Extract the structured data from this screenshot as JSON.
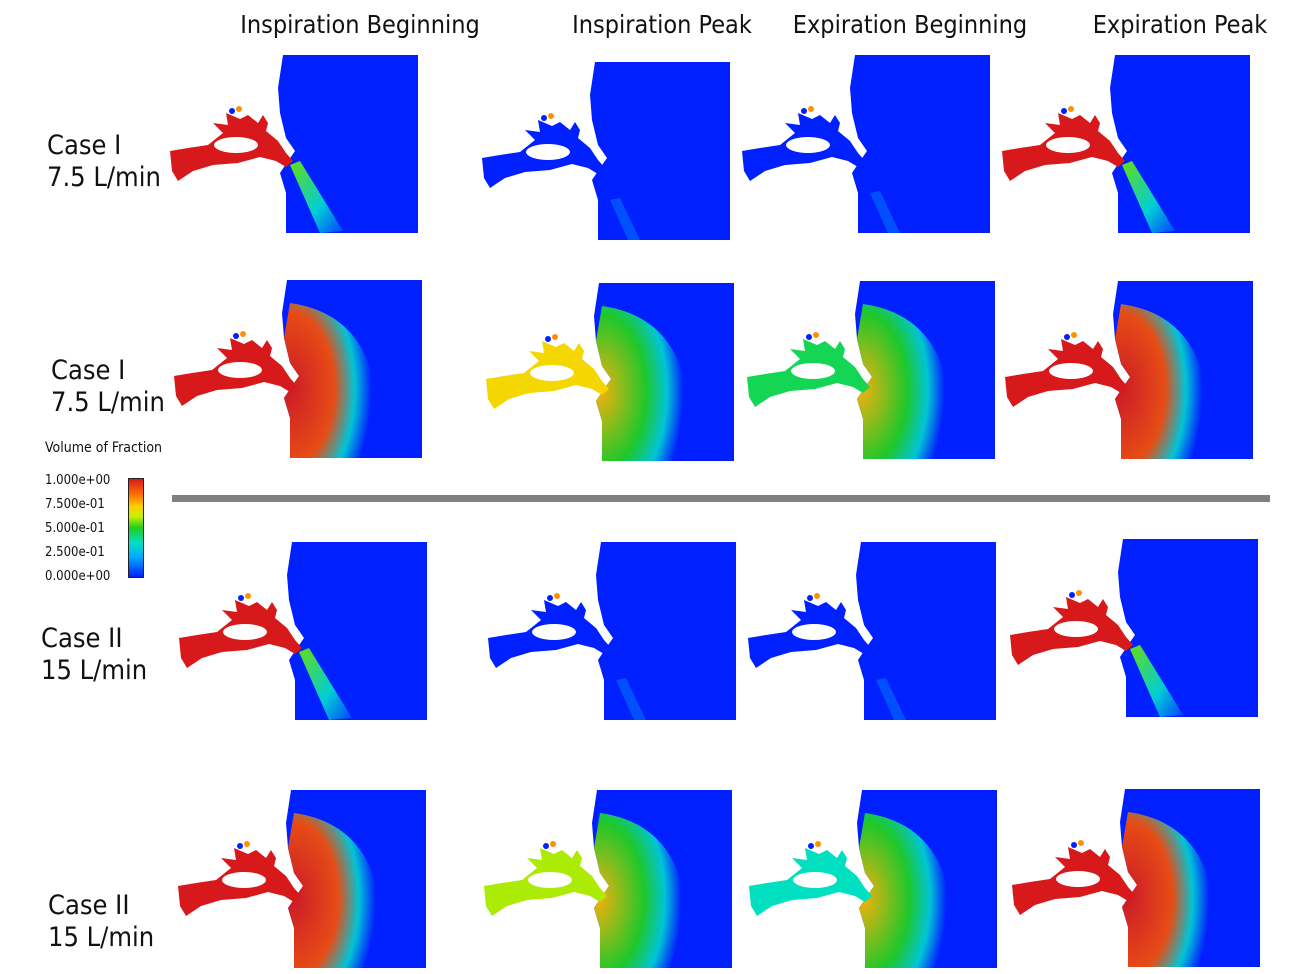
{
  "columns": [
    "Inspiration Beginning",
    "Inspiration Peak",
    "Expiration Beginning",
    "Expiration Peak"
  ],
  "rows": [
    {
      "case": "Case I",
      "flow": "7.5 L/min"
    },
    {
      "case": "Case I",
      "flow": "7.5 L/min"
    },
    {
      "case": "Case II",
      "flow": "15 L/min"
    },
    {
      "case": "Case II",
      "flow": "15 L/min"
    }
  ],
  "legend": {
    "title": "Volume of Fraction",
    "ticks": [
      "1.000e+00",
      "7.500e-01",
      "5.000e-01",
      "2.500e-01",
      "0.000e+00"
    ],
    "colors": {
      "max": "#d7191c",
      "high": "#ffd000",
      "mid": "#20d020",
      "low": "#00a8ff",
      "min": "#0020ff"
    }
  },
  "panels": [
    [
      {
        "airway": 1.0,
        "plume": "jet"
      },
      {
        "airway": 0.0,
        "plume": "faint"
      },
      {
        "airway": 0.0,
        "plume": "faint"
      },
      {
        "airway": 1.0,
        "plume": "jet"
      }
    ],
    [
      {
        "airway": 1.0,
        "plume": "cloud"
      },
      {
        "airway": 0.7,
        "plume": "cloud"
      },
      {
        "airway": 0.45,
        "plume": "cloud"
      },
      {
        "airway": 1.0,
        "plume": "cloud"
      }
    ],
    [
      {
        "airway": 1.0,
        "plume": "jet"
      },
      {
        "airway": 0.0,
        "plume": "faint"
      },
      {
        "airway": 0.0,
        "plume": "faint"
      },
      {
        "airway": 1.0,
        "plume": "jet"
      }
    ],
    [
      {
        "airway": 1.0,
        "plume": "cloud"
      },
      {
        "airway": 0.6,
        "plume": "cloud"
      },
      {
        "airway": 0.35,
        "plume": "cloud"
      },
      {
        "airway": 1.0,
        "plume": "cloud"
      }
    ]
  ]
}
